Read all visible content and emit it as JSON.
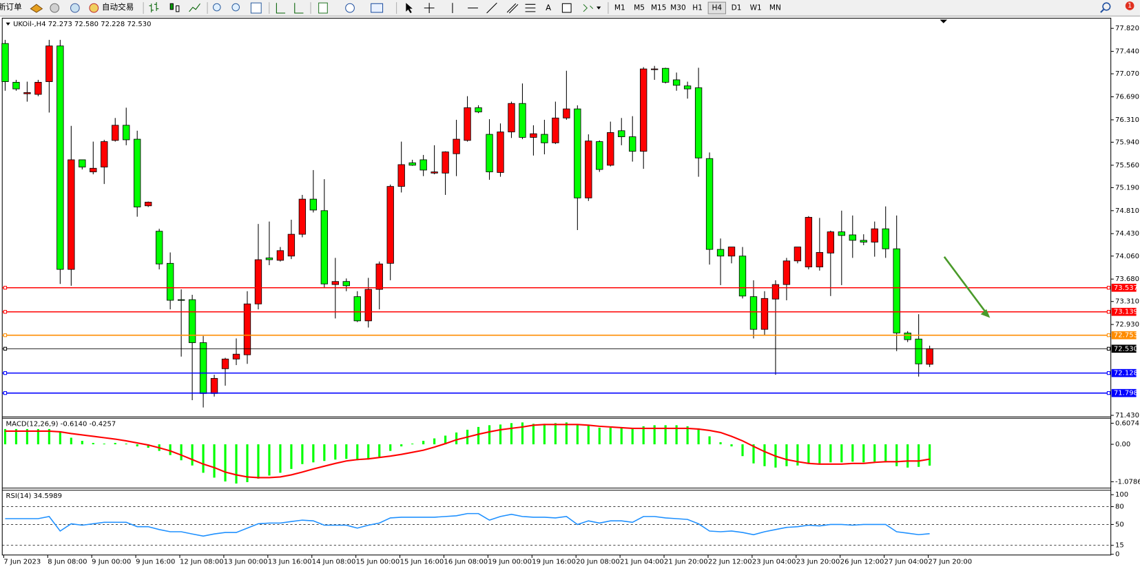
{
  "toolbar": {
    "new_order": "新订单",
    "auto_trading": "自动交易",
    "text_tool": "A",
    "timeframes": [
      "M1",
      "M5",
      "M15",
      "M30",
      "H1",
      "H4",
      "D1",
      "W1",
      "MN"
    ],
    "active_timeframe": "H4",
    "notifications": "1"
  },
  "chart_data": [
    {
      "type": "candlestick",
      "title": "UKOil-,H4  72.273 72.580 72.228 72.530",
      "categories": [
        "7 Jun 2023",
        null,
        null,
        null,
        "8 Jun 08:00",
        null,
        null,
        null,
        "9 Jun 00:00",
        null,
        null,
        null,
        "9 Jun 16:00",
        null,
        null,
        null,
        "12 Jun 08:00",
        null,
        null,
        null,
        "13 Jun 00:00",
        null,
        null,
        null,
        "13 Jun 16:00",
        null,
        null,
        null,
        "14 Jun 08:00",
        null,
        null,
        null,
        "15 Jun 00:00",
        null,
        null,
        null,
        "15 Jun 16:00",
        null,
        null,
        null,
        "16 Jun 08:00",
        null,
        null,
        null,
        "19 Jun 00:00",
        null,
        null,
        null,
        "19 Jun 16:00",
        null,
        null,
        null,
        "20 Jun 08:00",
        null,
        null,
        null,
        "21 Jun 04:00",
        null,
        null,
        null,
        "21 Jun 20:00",
        null,
        null,
        null,
        "22 Jun 12:00",
        null,
        null,
        null,
        "23 Jun 04:00",
        null,
        null,
        null,
        "23 Jun 20:00",
        null,
        null,
        null,
        "26 Jun 12:00",
        null,
        null,
        null,
        "27 Jun 04:00",
        null,
        null,
        null,
        "27 Jun 20:00"
      ],
      "open": [
        77.57,
        76.93,
        76.74,
        76.73,
        76.94,
        77.53,
        73.84,
        75.65,
        75.45,
        75.53,
        75.97,
        76.22,
        75.99,
        74.89,
        74.47,
        73.94,
        73.34,
        73.34,
        72.63,
        71.79,
        72.2,
        72.36,
        72.43,
        73.27,
        74.03,
        73.99,
        74.06,
        74.42,
        75.0,
        74.81,
        73.59,
        73.64,
        73.39,
        72.99,
        73.51,
        73.94,
        75.21,
        75.6,
        75.65,
        75.43,
        75.43,
        75.75,
        75.97,
        76.51,
        76.07,
        75.44,
        76.11,
        76.58,
        76.02,
        76.07,
        75.93,
        76.34,
        76.49,
        75.02,
        75.95,
        75.56,
        76.13,
        76.03,
        75.79,
        77.14,
        77.16,
        76.97,
        76.87,
        76.84,
        75.67,
        74.17,
        74.06,
        74.06,
        73.39,
        72.85,
        73.35,
        73.59,
        73.98,
        73.88,
        73.88,
        74.11,
        74.46,
        74.41,
        74.32,
        74.29,
        74.51,
        74.18,
        72.79,
        72.69,
        72.273
      ],
      "high": [
        77.63,
        76.97,
        76.94,
        76.97,
        77.63,
        77.63,
        76.21,
        75.65,
        75.95,
        75.98,
        76.34,
        76.51,
        76.13,
        74.96,
        74.51,
        74.12,
        73.51,
        73.42,
        72.74,
        72.1,
        72.38,
        72.7,
        73.48,
        74.59,
        74.63,
        74.21,
        74.66,
        75.07,
        75.48,
        75.33,
        74.03,
        73.69,
        73.48,
        73.7,
        73.97,
        75.24,
        75.95,
        75.65,
        75.73,
        75.89,
        75.79,
        76.31,
        76.7,
        76.55,
        76.32,
        76.25,
        76.61,
        76.91,
        76.22,
        76.31,
        76.61,
        77.12,
        76.55,
        76.07,
        75.97,
        76.28,
        76.34,
        76.37,
        77.18,
        77.2,
        77.17,
        77.09,
        76.94,
        77.17,
        75.77,
        74.35,
        74.21,
        74.21,
        73.66,
        73.48,
        73.66,
        74.03,
        74.21,
        74.72,
        74.69,
        74.48,
        74.81,
        74.73,
        74.42,
        74.63,
        74.88,
        74.73,
        72.82,
        73.1,
        72.58
      ],
      "low": [
        76.79,
        76.79,
        76.61,
        76.7,
        76.43,
        73.6,
        73.57,
        75.49,
        75.41,
        75.25,
        75.95,
        75.89,
        74.71,
        74.87,
        73.84,
        73.18,
        72.4,
        71.68,
        71.56,
        71.74,
        71.92,
        72.26,
        72.28,
        73.18,
        73.91,
        73.97,
        74.01,
        74.37,
        74.78,
        73.54,
        73.03,
        73.48,
        72.97,
        72.88,
        73.18,
        73.66,
        75.11,
        75.55,
        75.38,
        75.41,
        75.07,
        75.38,
        75.95,
        76.42,
        75.32,
        75.37,
        76.01,
        75.99,
        75.72,
        75.74,
        75.91,
        76.31,
        74.49,
        74.97,
        75.45,
        75.54,
        75.89,
        75.62,
        75.5,
        76.97,
        76.91,
        76.79,
        76.66,
        75.37,
        73.92,
        73.58,
        73.94,
        73.36,
        72.7,
        72.76,
        72.1,
        73.33,
        73.94,
        73.84,
        73.82,
        73.4,
        73.58,
        74.03,
        74.24,
        74.05,
        74.03,
        72.49,
        72.64,
        72.07,
        72.228
      ],
      "close": [
        76.94,
        76.82,
        76.76,
        76.93,
        77.53,
        73.84,
        75.65,
        75.53,
        75.51,
        75.95,
        76.22,
        75.98,
        74.87,
        74.95,
        73.93,
        73.33,
        73.33,
        72.63,
        71.79,
        72.04,
        72.36,
        72.44,
        73.27,
        74.0,
        74.0,
        74.15,
        74.42,
        75.0,
        74.82,
        73.6,
        73.64,
        73.57,
        72.99,
        73.51,
        73.93,
        75.21,
        75.57,
        75.56,
        75.48,
        75.45,
        75.78,
        75.99,
        76.51,
        76.44,
        75.45,
        76.11,
        76.58,
        76.02,
        76.08,
        75.93,
        76.34,
        76.49,
        75.02,
        75.96,
        75.49,
        76.1,
        76.03,
        75.79,
        77.15,
        77.15,
        76.93,
        76.88,
        76.82,
        75.68,
        74.17,
        74.06,
        74.21,
        73.4,
        72.85,
        73.36,
        73.59,
        73.98,
        74.21,
        74.7,
        74.12,
        74.46,
        74.4,
        74.32,
        74.29,
        74.51,
        74.18,
        72.79,
        72.68,
        72.28,
        72.53
      ],
      "up_color": "#ff0000",
      "down_color": "#00ff00",
      "ylim": [
        71.406,
        77.988
      ],
      "yticks": [
        {
          "value": 77.82,
          "label": "77.820"
        },
        {
          "value": 77.44,
          "label": "77.440"
        },
        {
          "value": 77.07,
          "label": "77.070"
        },
        {
          "value": 76.69,
          "label": "76.690"
        },
        {
          "value": 76.31,
          "label": "76.310"
        },
        {
          "value": 75.94,
          "label": "75.940"
        },
        {
          "value": 75.56,
          "label": "75.560"
        },
        {
          "value": 75.19,
          "label": "75.190"
        },
        {
          "value": 74.81,
          "label": "74.810"
        },
        {
          "value": 74.43,
          "label": "74.430"
        },
        {
          "value": 74.06,
          "label": "74.060"
        },
        {
          "value": 73.68,
          "label": "73.680"
        },
        {
          "value": 73.31,
          "label": "73.310"
        },
        {
          "value": 72.93,
          "label": "72.930"
        },
        {
          "value": 71.43,
          "label": "71.430"
        }
      ],
      "levels": [
        {
          "value": 73.537,
          "color": "#ff0000"
        },
        {
          "value": 73.139,
          "color": "#ff0000"
        },
        {
          "value": 72.753,
          "color": "#ff8c00"
        },
        {
          "value": 72.53,
          "label": "72.530",
          "color": "#000000"
        },
        {
          "value": 72.128,
          "color": "#0000ff"
        },
        {
          "value": 71.798,
          "color": "#0000ff"
        }
      ]
    },
    {
      "type": "macd",
      "title": "MACD(12,26,9) -0.6140 -0.4257",
      "histogram": [
        0.44,
        0.44,
        0.44,
        0.44,
        0.44,
        0.34,
        0.19,
        0.1,
        0.04,
        0.02,
        0.04,
        0.02,
        -0.06,
        -0.1,
        -0.19,
        -0.31,
        -0.46,
        -0.61,
        -0.82,
        -0.96,
        -1.07,
        -1.13,
        -1.09,
        -0.99,
        -0.9,
        -0.82,
        -0.71,
        -0.57,
        -0.52,
        -0.48,
        -0.44,
        -0.42,
        -0.46,
        -0.44,
        -0.36,
        -0.19,
        -0.06,
        0.02,
        0.1,
        0.17,
        0.25,
        0.34,
        0.42,
        0.5,
        0.55,
        0.57,
        0.61,
        0.63,
        0.59,
        0.59,
        0.61,
        0.63,
        0.57,
        0.55,
        0.48,
        0.48,
        0.48,
        0.46,
        0.52,
        0.55,
        0.55,
        0.55,
        0.52,
        0.46,
        0.23,
        0.06,
        -0.06,
        -0.34,
        -0.55,
        -0.63,
        -0.67,
        -0.63,
        -0.61,
        -0.55,
        -0.55,
        -0.52,
        -0.52,
        -0.5,
        -0.52,
        -0.5,
        -0.52,
        -0.63,
        -0.67,
        -0.65,
        -0.614
      ],
      "signal": [
        0.38,
        0.38,
        0.38,
        0.38,
        0.38,
        0.36,
        0.31,
        0.27,
        0.23,
        0.19,
        0.15,
        0.1,
        0.04,
        -0.02,
        -0.1,
        -0.19,
        -0.31,
        -0.44,
        -0.57,
        -0.67,
        -0.8,
        -0.88,
        -0.94,
        -0.96,
        -0.96,
        -0.94,
        -0.88,
        -0.8,
        -0.71,
        -0.63,
        -0.55,
        -0.48,
        -0.44,
        -0.42,
        -0.38,
        -0.34,
        -0.29,
        -0.23,
        -0.17,
        -0.08,
        0.02,
        0.13,
        0.21,
        0.29,
        0.36,
        0.42,
        0.46,
        0.5,
        0.55,
        0.57,
        0.57,
        0.57,
        0.57,
        0.55,
        0.52,
        0.5,
        0.48,
        0.46,
        0.46,
        0.46,
        0.46,
        0.46,
        0.46,
        0.44,
        0.4,
        0.34,
        0.23,
        0.1,
        -0.06,
        -0.21,
        -0.34,
        -0.44,
        -0.5,
        -0.55,
        -0.57,
        -0.57,
        -0.57,
        -0.55,
        -0.55,
        -0.52,
        -0.5,
        -0.5,
        -0.48,
        -0.48,
        -0.4257
      ],
      "histogram_color": "#00ff00",
      "signal_color": "#ff0000",
      "ylim": [
        -1.24,
        0.73
      ],
      "yticks": [
        0.6074,
        {
          "value": 0,
          "label": "0.00"
        },
        -1.0786
      ]
    },
    {
      "type": "line",
      "title": "RSI(14) 34.5989",
      "values": [
        59.8,
        59.8,
        59.8,
        59.8,
        63.4,
        39.0,
        51.2,
        48.8,
        51.2,
        53.7,
        53.7,
        53.7,
        46.3,
        46.3,
        41.5,
        37.8,
        37.8,
        34.1,
        30.5,
        34.1,
        36.6,
        36.6,
        43.9,
        51.2,
        52.4,
        52.4,
        54.9,
        57.3,
        56.1,
        48.8,
        48.8,
        48.8,
        43.9,
        48.8,
        52.4,
        61.0,
        62.2,
        62.2,
        62.2,
        62.2,
        63.4,
        64.6,
        68.3,
        68.3,
        57.3,
        63.4,
        67.1,
        63.4,
        62.2,
        62.2,
        61.0,
        63.4,
        50.0,
        56.1,
        52.4,
        56.1,
        56.1,
        53.7,
        63.4,
        63.4,
        61.0,
        59.8,
        58.5,
        51.2,
        39.0,
        37.8,
        39.0,
        36.6,
        32.9,
        37.8,
        41.5,
        45.1,
        46.3,
        48.8,
        47.6,
        50.0,
        50.0,
        48.8,
        50.0,
        50.0,
        50.0,
        37.8,
        35.4,
        32.9,
        34.5989
      ],
      "color": "#1e90ff",
      "ylim": [
        0,
        105
      ],
      "yticks": [
        100,
        80,
        50,
        15,
        0
      ],
      "levels": [
        80,
        50,
        15
      ]
    }
  ]
}
